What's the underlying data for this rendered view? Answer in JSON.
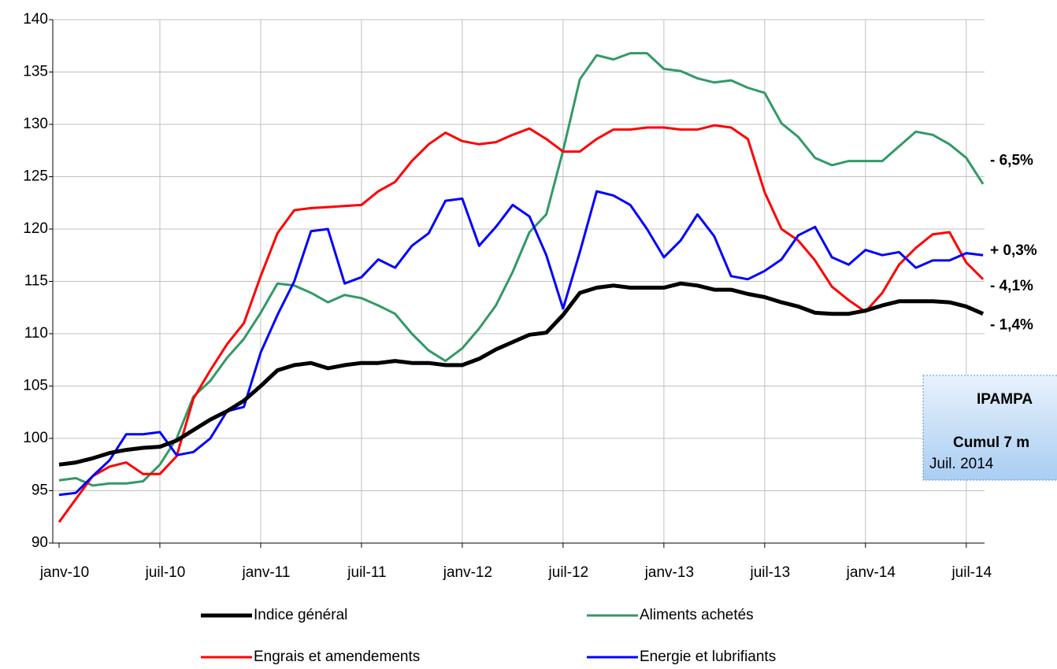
{
  "chart_data": {
    "type": "line",
    "categories": [
      "janv-10",
      null,
      null,
      null,
      null,
      null,
      "juil-10",
      null,
      null,
      null,
      null,
      null,
      "janv-11",
      null,
      null,
      null,
      null,
      null,
      "juil-11",
      null,
      null,
      null,
      null,
      null,
      "janv-12",
      null,
      null,
      null,
      null,
      null,
      "juil-12",
      null,
      null,
      null,
      null,
      null,
      "janv-13",
      null,
      null,
      null,
      null,
      null,
      "juil-13",
      null,
      null,
      null,
      null,
      null,
      "janv-14",
      null,
      null,
      null,
      null,
      null,
      "juil-14",
      null
    ],
    "series": [
      {
        "name": "Indice général",
        "color": "#000000",
        "width": 5,
        "values": [
          97.5,
          97.7,
          98.1,
          98.6,
          98.9,
          99.1,
          99.2,
          99.8,
          100.8,
          101.8,
          102.6,
          103.6,
          105.0,
          106.5,
          107.0,
          107.2,
          106.7,
          107.0,
          107.2,
          107.2,
          107.4,
          107.2,
          107.2,
          107.0,
          107.0,
          107.6,
          108.5,
          109.2,
          109.9,
          110.1,
          111.8,
          113.9,
          114.4,
          114.6,
          114.4,
          114.4,
          114.4,
          114.8,
          114.6,
          114.2,
          114.2,
          113.8,
          113.5,
          113.0,
          112.6,
          112.0,
          111.9,
          111.9,
          112.2,
          112.7,
          113.1,
          113.1,
          113.1,
          113.0,
          112.6,
          111.9
        ]
      },
      {
        "name": "Aliments achetés",
        "color": "#339966",
        "width": 3,
        "values": [
          96.0,
          96.2,
          95.5,
          95.7,
          95.7,
          95.9,
          97.5,
          100.0,
          104.0,
          105.5,
          107.7,
          109.5,
          112.0,
          114.8,
          114.6,
          113.9,
          113.0,
          113.7,
          113.4,
          112.7,
          111.9,
          110.0,
          108.4,
          107.4,
          108.6,
          110.5,
          112.7,
          115.9,
          119.7,
          121.4,
          127.5,
          134.3,
          136.6,
          136.2,
          136.8,
          136.8,
          135.3,
          135.1,
          134.4,
          134.0,
          134.2,
          133.5,
          133.0,
          130.1,
          128.8,
          126.8,
          126.1,
          126.5,
          126.5,
          126.5,
          127.9,
          129.3,
          129.0,
          128.1,
          126.8,
          124.3
        ]
      },
      {
        "name": "Engrais et amendements",
        "color": "#ff0000",
        "width": 3,
        "values": [
          92.0,
          94.2,
          96.4,
          97.3,
          97.7,
          96.6,
          96.6,
          98.3,
          103.8,
          106.5,
          109.0,
          111.0,
          115.5,
          119.6,
          121.8,
          122.0,
          122.1,
          122.2,
          122.3,
          123.6,
          124.5,
          126.5,
          128.1,
          129.2,
          128.4,
          128.1,
          128.3,
          129.0,
          129.6,
          128.6,
          127.4,
          127.4,
          128.6,
          129.5,
          129.5,
          129.7,
          129.7,
          129.5,
          129.5,
          129.9,
          129.7,
          128.6,
          123.5,
          120.0,
          118.9,
          117.0,
          114.5,
          113.2,
          112.1,
          113.9,
          116.6,
          118.2,
          119.5,
          119.7,
          116.8,
          115.2
        ]
      },
      {
        "name": "Energie et lubrifiants",
        "color": "#0000ff",
        "width": 3,
        "values": [
          94.6,
          94.8,
          96.4,
          97.9,
          100.4,
          100.4,
          100.6,
          98.4,
          98.7,
          100.0,
          102.6,
          103.0,
          108.2,
          111.8,
          115.0,
          119.8,
          120.0,
          114.8,
          115.4,
          117.1,
          116.3,
          118.4,
          119.6,
          122.7,
          122.9,
          118.4,
          120.2,
          122.3,
          121.2,
          117.5,
          112.4,
          117.8,
          123.6,
          123.2,
          122.3,
          120.0,
          117.3,
          118.9,
          121.4,
          119.3,
          115.5,
          115.2,
          116.0,
          117.1,
          119.4,
          120.2,
          117.3,
          116.6,
          118.0,
          117.5,
          117.8,
          116.3,
          117.0,
          117.0,
          117.7,
          117.5
        ]
      }
    ],
    "ylim": [
      90,
      140
    ],
    "yticks": [
      90,
      95,
      100,
      105,
      110,
      115,
      120,
      125,
      130,
      135,
      140
    ],
    "grid": true,
    "annotations": [
      {
        "text": "- 6,5%",
        "color": "#008000",
        "y": 126.5
      },
      {
        "text": "+ 0,3%",
        "color": "#0000ff",
        "y": 117.9
      },
      {
        "text": "- 4,1%",
        "color": "#ff0000",
        "y": 114.5
      },
      {
        "text": "- 1,4%",
        "color": "#000000",
        "y": 110.8
      }
    ],
    "box": [
      "IPAMPA",
      "Cumul 7 m",
      "Juil. 2014"
    ]
  }
}
